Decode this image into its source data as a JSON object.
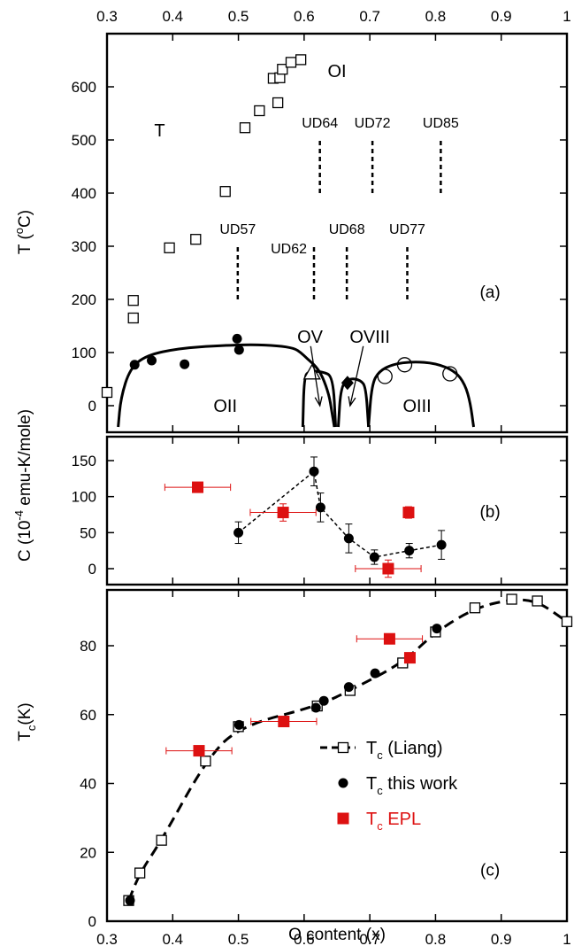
{
  "chart_data": [
    {
      "panel": "(a)",
      "type": "scatter",
      "xlabel": "",
      "ylabel": "T (°C)",
      "ylabel_parts": {
        "main": "T (",
        "sup": "o",
        "rest": "C)"
      },
      "xlim": [
        0.3,
        1.0
      ],
      "ylim": [
        -40,
        690
      ],
      "x_ticks": [
        0.3,
        0.4,
        0.5,
        0.6,
        0.7,
        0.8,
        0.9,
        1
      ],
      "x_tick_labels": [
        "0.3",
        "0.4",
        "0.5",
        "0.6",
        "0.7",
        "0.8",
        "0.9",
        "1"
      ],
      "y_ticks": [
        0,
        100,
        200,
        300,
        400,
        500,
        600
      ],
      "y_tick_labels": [
        "0",
        "100",
        "200",
        "300",
        "400",
        "500",
        "600"
      ],
      "series": [
        {
          "marker": "open-square",
          "x": [
            0.3,
            0.34,
            0.34,
            0.395,
            0.435,
            0.48,
            0.51,
            0.532,
            0.56,
            0.553,
            0.563,
            0.567,
            0.58,
            0.595
          ],
          "y": [
            25,
            165,
            198,
            297,
            313,
            403,
            523,
            555,
            570,
            616,
            617,
            633,
            646,
            651
          ]
        },
        {
          "marker": "filled-circle",
          "x": [
            0.342,
            0.368,
            0.418,
            0.498,
            0.501
          ],
          "y": [
            77,
            85,
            78,
            126,
            105
          ]
        },
        {
          "marker": "open-triangle",
          "x": [
            0.612
          ],
          "y": [
            62
          ]
        },
        {
          "marker": "filled-diamond",
          "x": [
            0.666
          ],
          "y": [
            43
          ]
        },
        {
          "marker": "open-circle",
          "x": [
            0.723,
            0.753,
            0.822
          ],
          "y": [
            55,
            77,
            60
          ]
        }
      ],
      "phase_boundaries": [
        {
          "label": "OII",
          "x": [
            0.317,
            0.321,
            0.335,
            0.36,
            0.41,
            0.47,
            0.52,
            0.56,
            0.585,
            0.595,
            0.605,
            0.618,
            0.628,
            0.638,
            0.642,
            0.646
          ],
          "y": [
            -40,
            15,
            70,
            95,
            108,
            113,
            115,
            113,
            108,
            100,
            88,
            74,
            55,
            20,
            -10,
            -40
          ]
        },
        {
          "label": "OV",
          "x": [
            0.598,
            0.6,
            0.608,
            0.628,
            0.644,
            0.648
          ],
          "y": [
            -40,
            55,
            65,
            64,
            55,
            -40
          ]
        },
        {
          "label": "OVIII",
          "x": [
            0.652,
            0.656,
            0.67,
            0.686,
            0.694,
            0.698
          ],
          "y": [
            -40,
            38,
            52,
            48,
            35,
            -40
          ]
        },
        {
          "label": "OIII",
          "x": [
            0.698,
            0.703,
            0.714,
            0.735,
            0.765,
            0.8,
            0.83,
            0.845,
            0.853,
            0.858
          ],
          "y": [
            -40,
            40,
            65,
            78,
            83,
            80,
            65,
            40,
            5,
            -40
          ]
        }
      ],
      "dashed_markers": [
        {
          "label": "UD57",
          "x": 0.499,
          "y_range": [
            200,
            300
          ],
          "label_pos": "above"
        },
        {
          "label": "UD62",
          "x": 0.615,
          "y_range": [
            200,
            300
          ],
          "label_pos": "above-left"
        },
        {
          "label": "UD68",
          "x": 0.665,
          "y_range": [
            200,
            300
          ],
          "label_pos": "above"
        },
        {
          "label": "UD77",
          "x": 0.757,
          "y_range": [
            200,
            300
          ],
          "label_pos": "above"
        },
        {
          "label": "UD64",
          "x": 0.624,
          "y_range": [
            400,
            500
          ],
          "label_pos": "above"
        },
        {
          "label": "UD72",
          "x": 0.704,
          "y_range": [
            400,
            500
          ],
          "label_pos": "above"
        },
        {
          "label": "UD85",
          "x": 0.808,
          "y_range": [
            400,
            500
          ],
          "label_pos": "above"
        }
      ],
      "annotations": [
        "OI",
        "T",
        "OII",
        "OIII",
        "OV",
        "OVIII"
      ]
    },
    {
      "panel": "(b)",
      "type": "scatter",
      "ylabel": "C (10^-4 emu-K/mole)",
      "ylabel_parts": {
        "main": "C (10",
        "sup": "-4",
        "rest": " emu-K/mole)"
      },
      "xlim": [
        0.3,
        1.0
      ],
      "ylim": [
        -25,
        175
      ],
      "y_ticks": [
        0,
        50,
        100,
        150
      ],
      "y_tick_labels": [
        "0",
        "50",
        "100",
        "150"
      ],
      "series": [
        {
          "marker": "filled-circle",
          "color": "#000000",
          "line": "dashed",
          "x": [
            0.5,
            0.615,
            0.625,
            0.668,
            0.707,
            0.76,
            0.809
          ],
          "y": [
            50,
            135,
            85,
            42,
            16,
            25,
            33
          ],
          "yerr": [
            15,
            20,
            20,
            20,
            10,
            10,
            20
          ]
        },
        {
          "marker": "filled-square",
          "color": "#dd1111",
          "x": [
            0.438,
            0.568,
            0.728,
            0.759
          ],
          "y": [
            113,
            78,
            0,
            78
          ],
          "xerr": [
            0.05,
            0.05,
            0.05,
            0
          ],
          "yerr": [
            0,
            12,
            12,
            8
          ]
        }
      ]
    },
    {
      "panel": "(c)",
      "type": "scatter",
      "xlabel": "O content (x)",
      "ylabel": "Tc(K)",
      "ylabel_parts": {
        "main": "T",
        "sub": "c",
        "rest": "(K)"
      },
      "xlim": [
        0.3,
        1.0
      ],
      "ylim": [
        0,
        97
      ],
      "x_ticks": [
        0.3,
        0.4,
        0.5,
        0.6,
        0.7,
        0.8,
        0.9,
        1
      ],
      "x_tick_labels": [
        "0.3",
        "0.4",
        "0.5",
        "0.6",
        "0.7",
        "0.8",
        "0.9",
        "1"
      ],
      "y_ticks": [
        0,
        20,
        40,
        60,
        80
      ],
      "y_tick_labels": [
        "0",
        "20",
        "40",
        "60",
        "80"
      ],
      "series": [
        {
          "name": "Tc (Liang)",
          "marker": "open-square",
          "line": "dashed",
          "x": [
            0.333,
            0.35,
            0.383,
            0.45,
            0.5,
            0.62,
            0.67,
            0.75,
            0.8,
            0.86,
            0.916,
            0.955,
            1.0
          ],
          "y": [
            6,
            14,
            23.5,
            46.5,
            56.5,
            62.5,
            67,
            75,
            84,
            91,
            93.5,
            93,
            87
          ]
        },
        {
          "name": "Tc this work",
          "marker": "filled-circle",
          "x": [
            0.335,
            0.501,
            0.618,
            0.63,
            0.668,
            0.708,
            0.802
          ],
          "y": [
            6,
            57,
            62,
            64,
            68,
            72,
            85
          ]
        },
        {
          "name": "Tc EPL",
          "marker": "filled-square",
          "color": "#dd1111",
          "x": [
            0.44,
            0.569,
            0.73,
            0.761
          ],
          "y": [
            49.5,
            58,
            82,
            76.5
          ],
          "xerr": [
            0.05,
            0.05,
            0.05,
            0
          ],
          "yerr": [
            0,
            0,
            0,
            0
          ]
        }
      ],
      "legend": [
        {
          "main": "T",
          "sub": "c",
          "rest": " (Liang)",
          "color": "#000000"
        },
        {
          "main": "T",
          "sub": "c",
          "rest": " this work",
          "color": "#000000"
        },
        {
          "main": "T",
          "sub": "c",
          "rest": " EPL",
          "color": "#dd1111"
        }
      ]
    }
  ]
}
